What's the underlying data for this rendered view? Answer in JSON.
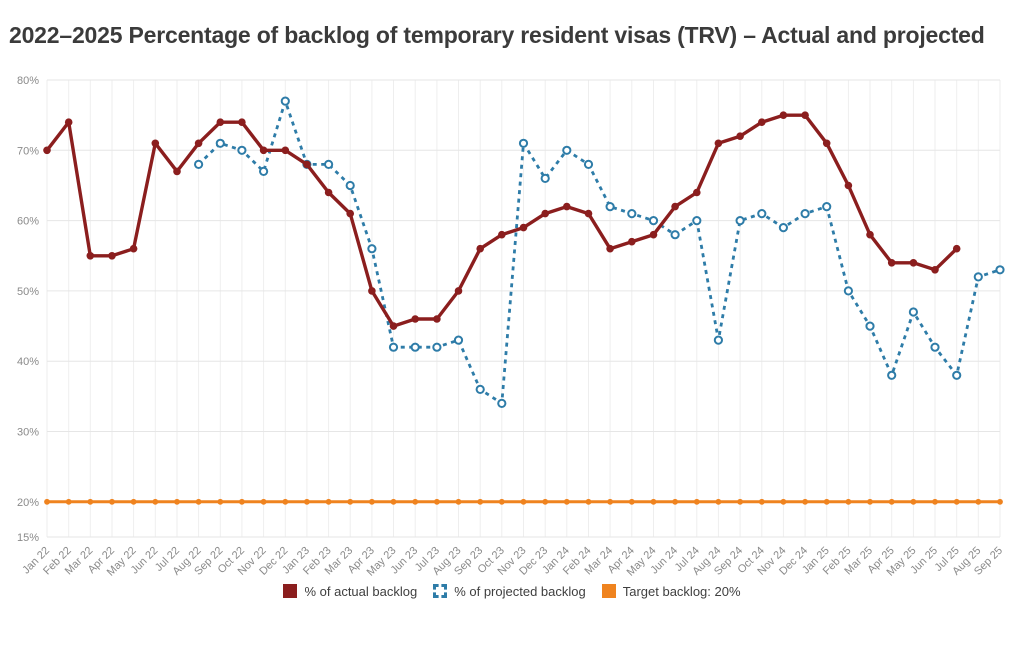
{
  "title": "2022–2025 Percentage of backlog of temporary resident visas (TRV) – Actual and projected",
  "legend": {
    "items": [
      {
        "label": "% of actual backlog",
        "swatch": "solid",
        "color": "#8B1E1E"
      },
      {
        "label": "% of projected backlog",
        "swatch": "dashed",
        "color": "#2E7CA8"
      },
      {
        "label": "Target backlog: 20%",
        "swatch": "solid",
        "color": "#EF831F"
      }
    ]
  },
  "chart_data": {
    "type": "line",
    "title": "2022–2025 Percentage of backlog of temporary resident visas (TRV) – Actual and projected",
    "xlabel": "",
    "ylabel": "",
    "y_unit": "%",
    "ylim": [
      15,
      80
    ],
    "y_ticks": [
      80,
      70,
      60,
      50,
      40,
      30,
      20,
      15
    ],
    "grid": true,
    "x_tick_rotation": -45,
    "legend_position": "bottom",
    "categories": [
      "Jan 22",
      "Feb 22",
      "Mar 22",
      "Apr 22",
      "May 22",
      "Jun 22",
      "Jul 22",
      "Aug 22",
      "Sep 22",
      "Oct 22",
      "Nov 22",
      "Dec 22",
      "Jan 23",
      "Feb 23",
      "Mar 23",
      "Apr 23",
      "May 23",
      "Jun 23",
      "Jul 23",
      "Aug 23",
      "Sep 23",
      "Oct 23",
      "Nov 23",
      "Dec 23",
      "Jan 24",
      "Feb 24",
      "Mar 24",
      "Apr 24",
      "May 24",
      "Jun 24",
      "Jul 24",
      "Aug 24",
      "Sep 24",
      "Oct 24",
      "Nov 24",
      "Dec 24",
      "Jan 25",
      "Feb 25",
      "Mar 25",
      "Apr 25",
      "May 25",
      "Jun 25",
      "Jul 25",
      "Aug 25",
      "Sep 25"
    ],
    "series": [
      {
        "key": "actual",
        "name": "% of actual backlog",
        "color": "#8B1E1E",
        "line_style": "solid",
        "line_width": 3.4,
        "marker": "filled-circle",
        "marker_radius": 3.8,
        "values": [
          70,
          74,
          55,
          55,
          56,
          71,
          67,
          71,
          74,
          74,
          70,
          70,
          68,
          64,
          61,
          50,
          45,
          46,
          46,
          50,
          56,
          58,
          59,
          61,
          62,
          61,
          56,
          57,
          58,
          62,
          64,
          71,
          72,
          74,
          75,
          75,
          71,
          65,
          58,
          54,
          54,
          53,
          56,
          null,
          null
        ]
      },
      {
        "key": "projected",
        "name": "% of projected backlog",
        "color": "#2E7CA8",
        "line_style": "dashed",
        "dash": "4 4.5",
        "line_width": 2.8,
        "marker": "open-circle",
        "marker_radius": 3.6,
        "values": [
          null,
          null,
          null,
          null,
          null,
          null,
          null,
          68,
          71,
          70,
          67,
          77,
          68,
          68,
          65,
          56,
          42,
          42,
          42,
          43,
          36,
          34,
          71,
          66,
          70,
          68,
          62,
          61,
          60,
          58,
          60,
          43,
          60,
          61,
          59,
          61,
          62,
          50,
          45,
          38,
          47,
          42,
          38,
          52,
          53
        ]
      },
      {
        "key": "target",
        "name": "Target backlog: 20%",
        "color": "#EF831F",
        "line_style": "solid",
        "line_width": 3,
        "marker": "filled-circle",
        "marker_radius": 2.9,
        "values": [
          20,
          20,
          20,
          20,
          20,
          20,
          20,
          20,
          20,
          20,
          20,
          20,
          20,
          20,
          20,
          20,
          20,
          20,
          20,
          20,
          20,
          20,
          20,
          20,
          20,
          20,
          20,
          20,
          20,
          20,
          20,
          20,
          20,
          20,
          20,
          20,
          20,
          20,
          20,
          20,
          20,
          20,
          20,
          20,
          20
        ]
      }
    ]
  }
}
